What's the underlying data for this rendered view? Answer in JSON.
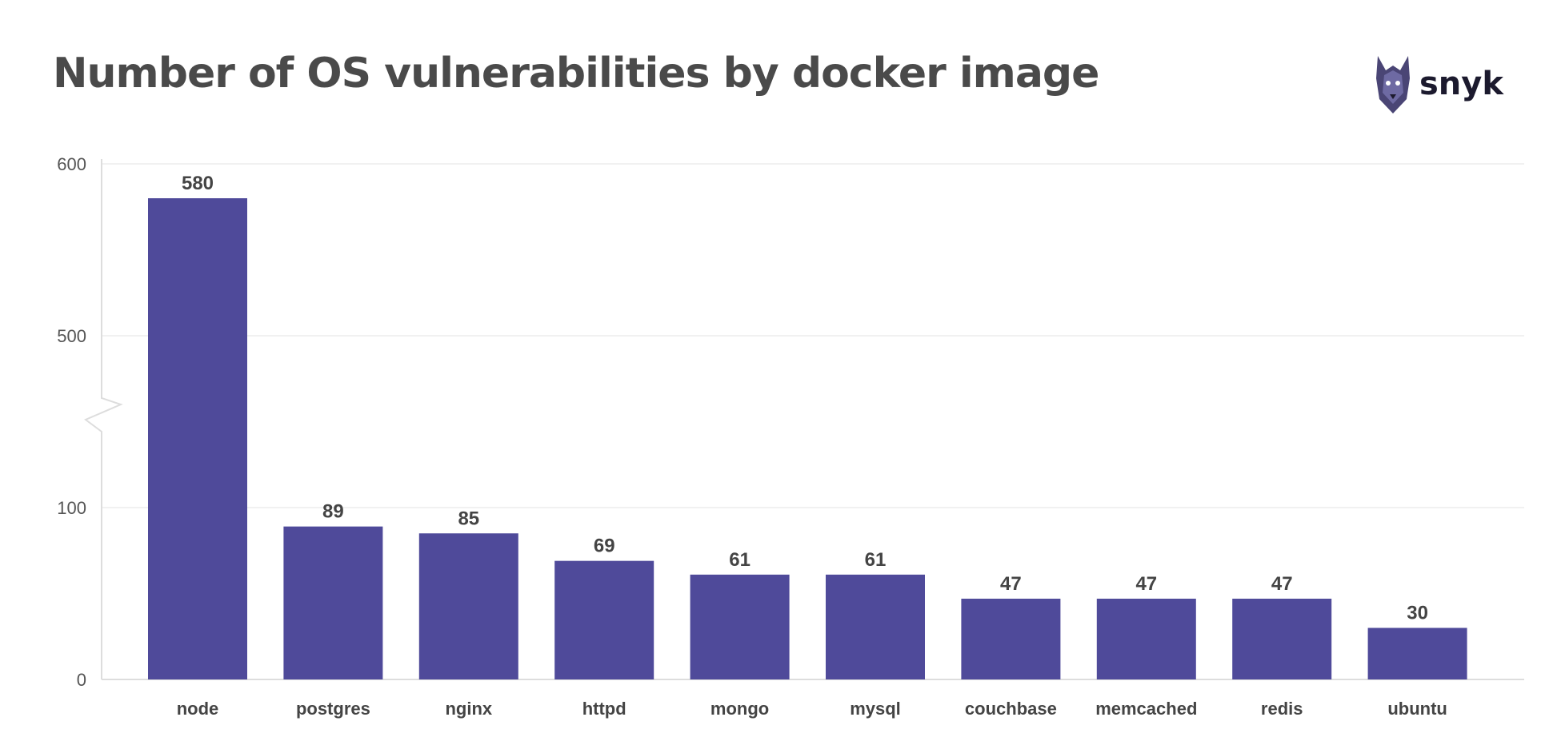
{
  "chart_data": {
    "type": "bar",
    "title": "Number of OS vulnerabilities by docker image",
    "categories": [
      "node",
      "postgres",
      "nginx",
      "httpd",
      "mongo",
      "mysql",
      "couchbase",
      "memcached",
      "redis",
      "ubuntu"
    ],
    "values": [
      580,
      89,
      85,
      69,
      61,
      61,
      47,
      47,
      47,
      30
    ],
    "y_ticks": [
      "0",
      "100",
      "500",
      "600"
    ],
    "axis_break": {
      "from": 100,
      "to": 500
    },
    "grid": true,
    "legend": "none",
    "bar_color": "#4f4a9a"
  },
  "logo": {
    "text": "snyk",
    "icon": "snyk-dog-icon"
  }
}
